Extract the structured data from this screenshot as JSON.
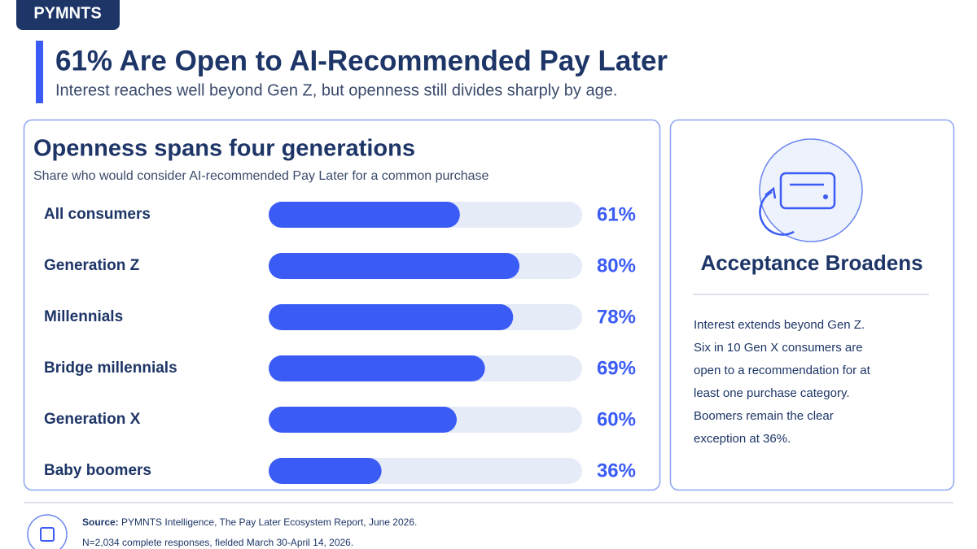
{
  "brand": "PYMNTS",
  "header": {
    "title": "61% Are Open to AI-Recommended Pay Later",
    "subtitle": "Interest reaches well beyond Gen Z, but openness still divides sharply by age."
  },
  "chart_data": {
    "type": "bar",
    "title": "Openness spans four generations",
    "subtitle": "Share who would consider AI-recommended Pay Later for a common purchase",
    "categories": [
      "All consumers",
      "Generation Z",
      "Millennials",
      "Bridge millennials",
      "Generation X",
      "Baby boomers"
    ],
    "values": [
      61,
      80,
      78,
      69,
      60,
      36
    ],
    "value_labels": [
      "61%",
      "80%",
      "78%",
      "69%",
      "60%",
      "36%"
    ],
    "xlim": [
      0,
      100
    ],
    "color": "#3b5cf4",
    "track_color": "#e6ebf8"
  },
  "sidebar": {
    "title": "Acceptance Broadens",
    "lines": [
      "Interest extends beyond Gen Z.",
      "Six in 10 Gen X consumers are",
      "open to a recommendation for at",
      "least one purchase category.",
      "Boomers remain the clear",
      "exception at 36%."
    ]
  },
  "footer": {
    "source_label": "Source:",
    "source": "PYMNTS Intelligence, The Pay Later Ecosystem Report, June 2026.",
    "note": "N=2,034 complete responses, fielded March 30-April 14, 2026."
  }
}
